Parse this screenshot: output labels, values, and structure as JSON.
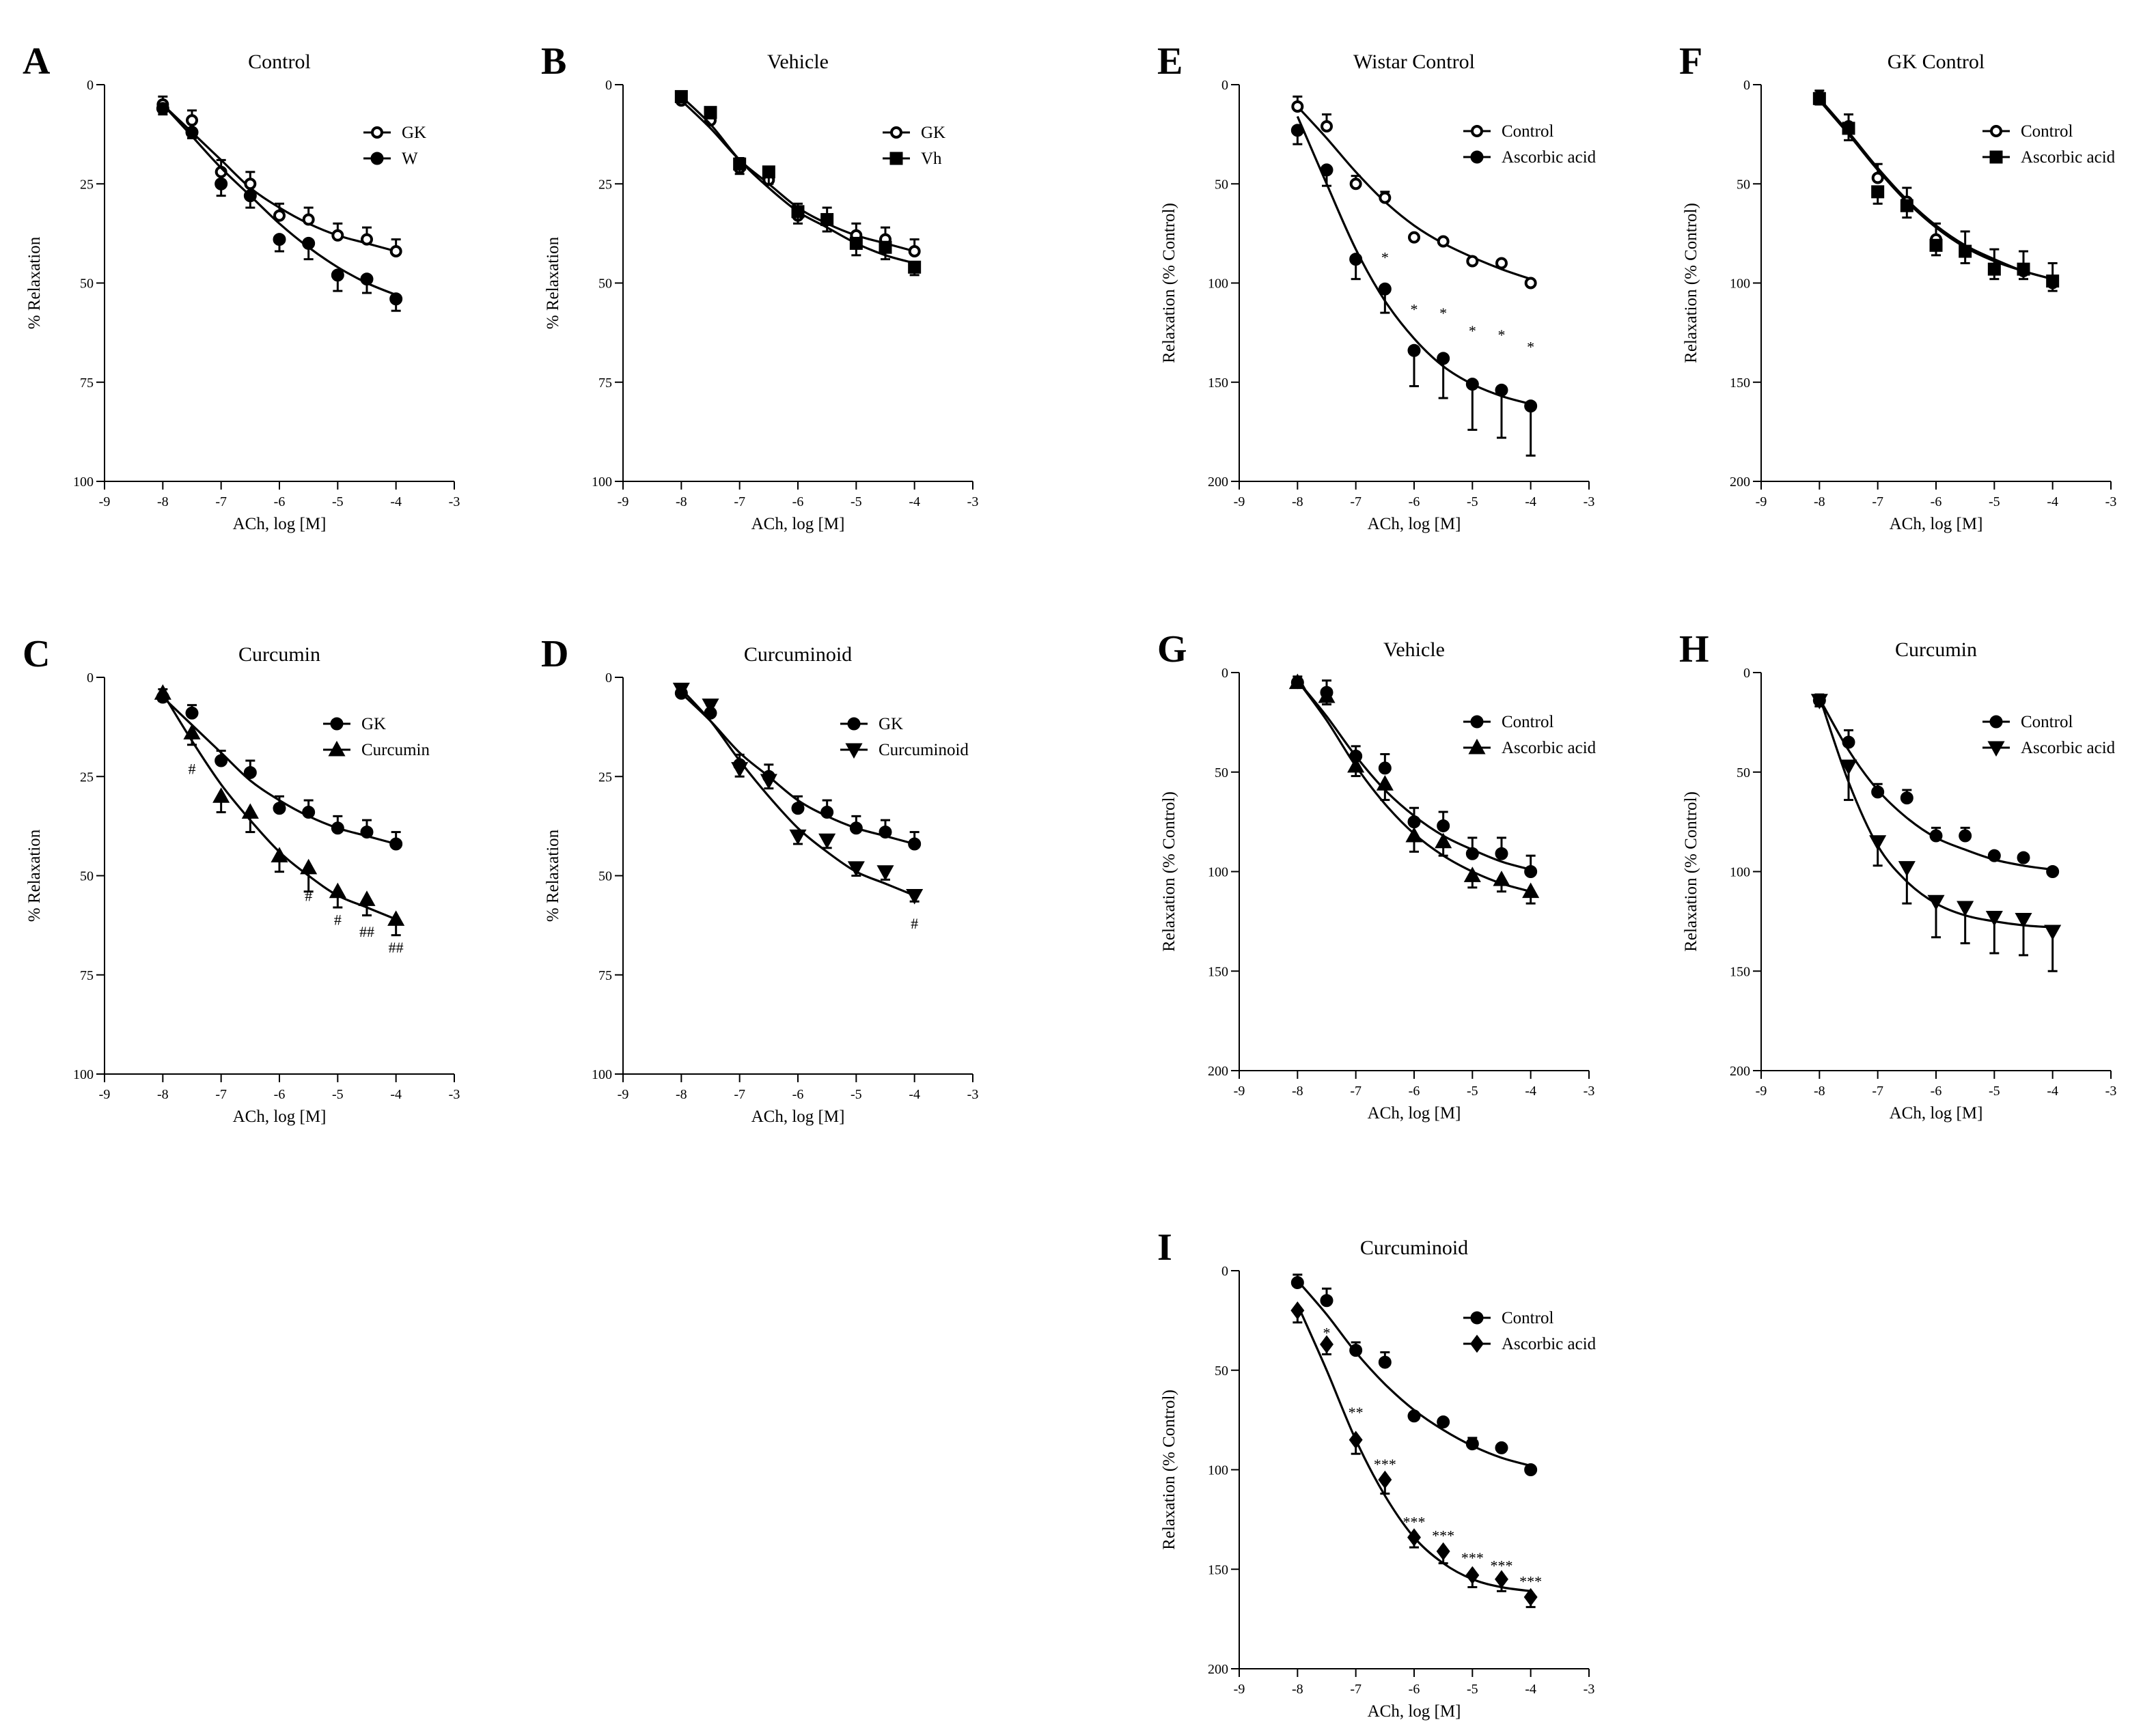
{
  "figure": {
    "background": "#ffffff",
    "ink": "#000000"
  },
  "chart_data": [
    {
      "id": "A",
      "letter": "A",
      "type": "line",
      "title": "Control",
      "xlabel": "ACh, log [M]",
      "ylabel": "% Relaxation",
      "xlim": [
        -9,
        -3
      ],
      "ylim": [
        0,
        100
      ],
      "y_inverted": true,
      "xticks": [
        -9,
        -8,
        -7,
        -6,
        -5,
        -4,
        -3
      ],
      "yticks": [
        0,
        25,
        50,
        75,
        100
      ],
      "x": [
        -8,
        -7.5,
        -7,
        -6.5,
        -6,
        -5.5,
        -5,
        -4.5,
        -4
      ],
      "series": [
        {
          "name": "GK",
          "marker": "circle-open",
          "values": [
            5,
            9,
            22,
            25,
            33,
            34,
            38,
            39,
            42
          ],
          "errors": [
            2,
            2.5,
            3,
            3,
            3,
            3,
            3,
            3,
            3
          ],
          "fit": [
            5,
            12,
            19,
            26,
            31,
            35,
            38,
            40,
            42
          ]
        },
        {
          "name": "W",
          "marker": "circle-filled",
          "values": [
            6,
            12,
            25,
            28,
            39,
            40,
            48,
            49,
            54
          ],
          "errors": [
            1.5,
            1.5,
            3,
            3,
            3,
            4,
            4,
            3.5,
            3
          ],
          "fit": [
            5,
            13,
            21,
            28,
            35,
            41,
            46,
            50,
            53
          ]
        }
      ],
      "annotations": [],
      "legend_position": "top-right"
    },
    {
      "id": "B",
      "letter": "B",
      "type": "line",
      "title": "Vehicle",
      "xlabel": "ACh, log [M]",
      "ylabel": "% Relaxation",
      "xlim": [
        -9,
        -3
      ],
      "ylim": [
        0,
        100
      ],
      "y_inverted": true,
      "xticks": [
        -9,
        -8,
        -7,
        -6,
        -5,
        -4,
        -3
      ],
      "yticks": [
        0,
        25,
        50,
        75,
        100
      ],
      "x": [
        -8,
        -7.5,
        -7,
        -6.5,
        -6,
        -5.5,
        -5,
        -4.5,
        -4
      ],
      "series": [
        {
          "name": "GK",
          "marker": "circle-open",
          "values": [
            4,
            9,
            21,
            24,
            33,
            34,
            38,
            39,
            42
          ],
          "errors": [
            2,
            2,
            2.5,
            3,
            3,
            3,
            3,
            3,
            3
          ],
          "fit": [
            4,
            11,
            19,
            25,
            31,
            35,
            38,
            40,
            42
          ]
        },
        {
          "name": "Vh",
          "marker": "square-filled",
          "values": [
            3,
            7,
            20,
            22,
            32,
            34,
            40,
            41,
            46
          ],
          "errors": [
            1.5,
            1.5,
            2.5,
            3,
            3,
            3,
            3,
            3,
            2
          ],
          "fit": [
            3,
            10,
            19,
            26,
            32,
            36,
            40,
            43,
            45
          ]
        }
      ],
      "annotations": [],
      "legend_position": "top-right"
    },
    {
      "id": "C",
      "letter": "C",
      "type": "line",
      "title": "Curcumin",
      "xlabel": "ACh, log [M]",
      "ylabel": "% Relaxation",
      "xlim": [
        -9,
        -3
      ],
      "ylim": [
        0,
        100
      ],
      "y_inverted": true,
      "xticks": [
        -9,
        -8,
        -7,
        -6,
        -5,
        -4,
        -3
      ],
      "yticks": [
        0,
        25,
        50,
        75,
        100
      ],
      "x": [
        -8,
        -7.5,
        -7,
        -6.5,
        -6,
        -5.5,
        -5,
        -4.5,
        -4
      ],
      "series": [
        {
          "name": "GK",
          "marker": "circle-filled",
          "values": [
            5,
            9,
            21,
            24,
            33,
            34,
            38,
            39,
            42
          ],
          "errors": [
            2,
            2,
            2.5,
            3,
            3,
            3,
            3,
            3,
            3
          ],
          "fit": [
            5,
            12,
            19,
            26,
            31,
            35,
            38,
            40,
            42
          ]
        },
        {
          "name": "Curcumin",
          "marker": "triangle-up",
          "values": [
            4,
            14,
            30,
            34,
            45,
            48,
            54,
            56,
            61
          ],
          "errors": [
            2,
            3,
            4,
            5,
            4,
            6,
            4,
            4,
            4
          ],
          "fit": [
            4,
            16,
            27,
            36,
            44,
            50,
            55,
            58,
            61
          ]
        }
      ],
      "annotations": [
        {
          "text": "#",
          "x": -7.5,
          "y": 23
        },
        {
          "text": "#",
          "x": -5.5,
          "y": 55
        },
        {
          "text": "#",
          "x": -5,
          "y": 61
        },
        {
          "text": "##",
          "x": -4.5,
          "y": 64
        },
        {
          "text": "##",
          "x": -4,
          "y": 68
        }
      ],
      "legend_position": "top-right"
    },
    {
      "id": "D",
      "letter": "D",
      "type": "line",
      "title": "Curcuminoid",
      "xlabel": "ACh, log [M]",
      "ylabel": "% Relaxation",
      "xlim": [
        -9,
        -3
      ],
      "ylim": [
        0,
        100
      ],
      "y_inverted": true,
      "xticks": [
        -9,
        -8,
        -7,
        -6,
        -5,
        -4,
        -3
      ],
      "yticks": [
        0,
        25,
        50,
        75,
        100
      ],
      "x": [
        -8,
        -7.5,
        -7,
        -6.5,
        -6,
        -5.5,
        -5,
        -4.5,
        -4
      ],
      "series": [
        {
          "name": "GK",
          "marker": "circle-filled",
          "values": [
            4,
            9,
            22,
            25,
            33,
            34,
            38,
            39,
            42
          ],
          "errors": [
            2,
            2,
            2.5,
            3,
            3,
            3,
            3,
            3,
            3
          ],
          "fit": [
            4,
            11,
            19,
            25,
            31,
            35,
            38,
            40,
            42
          ]
        },
        {
          "name": "Curcuminoid",
          "marker": "triangle-down",
          "values": [
            3,
            7,
            23,
            26,
            40,
            41,
            48,
            49,
            55
          ],
          "errors": [
            1.5,
            1.5,
            2,
            2,
            2,
            2,
            2,
            2,
            1.5
          ],
          "fit": [
            3,
            11,
            21,
            30,
            38,
            44,
            49,
            52,
            55
          ]
        }
      ],
      "annotations": [
        {
          "text": "#",
          "x": -4,
          "y": 62
        }
      ],
      "legend_position": "top-right"
    },
    {
      "id": "E",
      "letter": "E",
      "type": "line",
      "title": "Wistar Control",
      "xlabel": "ACh, log [M]",
      "ylabel": "Relaxation (% Control)",
      "xlim": [
        -9,
        -3
      ],
      "ylim": [
        0,
        200
      ],
      "y_inverted": true,
      "xticks": [
        -9,
        -8,
        -7,
        -6,
        -5,
        -4,
        -3
      ],
      "yticks": [
        0,
        50,
        100,
        150,
        200
      ],
      "x": [
        -8,
        -7.5,
        -7,
        -6.5,
        -6,
        -5.5,
        -5,
        -4.5,
        -4
      ],
      "series": [
        {
          "name": "Control",
          "marker": "circle-open",
          "values": [
            11,
            21,
            50,
            57,
            77,
            79,
            89,
            90,
            100
          ],
          "errors": [
            5,
            6,
            4,
            3,
            0,
            0,
            0,
            0,
            0
          ],
          "fit": [
            11,
            27,
            44,
            59,
            71,
            80,
            87,
            93,
            98
          ]
        },
        {
          "name": "Ascorbic acid",
          "marker": "circle-filled",
          "values": [
            23,
            43,
            88,
            103,
            134,
            138,
            151,
            154,
            162
          ],
          "errors": [
            7,
            8,
            10,
            12,
            18,
            20,
            23,
            24,
            25
          ],
          "fit": [
            16,
            50,
            83,
            109,
            128,
            142,
            151,
            157,
            161
          ]
        }
      ],
      "annotations": [
        {
          "text": "*",
          "x": -6.5,
          "y": 87
        },
        {
          "text": "*",
          "x": -6,
          "y": 113
        },
        {
          "text": "*",
          "x": -5.5,
          "y": 115
        },
        {
          "text": "*",
          "x": -5,
          "y": 124
        },
        {
          "text": "*",
          "x": -4.5,
          "y": 126
        },
        {
          "text": "*",
          "x": -4,
          "y": 132
        }
      ],
      "legend_position": "top-right"
    },
    {
      "id": "F",
      "letter": "F",
      "type": "line",
      "title": "GK Control",
      "xlabel": "ACh, log [M]",
      "ylabel": "Relaxation (% Control)",
      "xlim": [
        -9,
        -3
      ],
      "ylim": [
        0,
        200
      ],
      "y_inverted": true,
      "xticks": [
        -9,
        -8,
        -7,
        -6,
        -5,
        -4,
        -3
      ],
      "yticks": [
        0,
        50,
        100,
        150,
        200
      ],
      "x": [
        -8,
        -7.5,
        -7,
        -6.5,
        -6,
        -5.5,
        -5,
        -4.5,
        -4
      ],
      "series": [
        {
          "name": "Control",
          "marker": "circle-open",
          "values": [
            6,
            21,
            47,
            59,
            78,
            84,
            93,
            94,
            100
          ],
          "errors": [
            3,
            6,
            7,
            7,
            8,
            10,
            10,
            10,
            10
          ],
          "fit": [
            7,
            24,
            42,
            58,
            71,
            81,
            88,
            94,
            98
          ]
        },
        {
          "name": "Ascorbic acid",
          "marker": "square-filled",
          "values": [
            7,
            22,
            54,
            61,
            81,
            84,
            93,
            93,
            99
          ],
          "errors": [
            3,
            6,
            6,
            6,
            5,
            6,
            5,
            5,
            5
          ],
          "fit": [
            8,
            25,
            43,
            59,
            72,
            82,
            89,
            94,
            98
          ]
        }
      ],
      "annotations": [],
      "legend_position": "top-right"
    },
    {
      "id": "G",
      "letter": "G",
      "type": "line",
      "title": "Vehicle",
      "xlabel": "ACh, log [M]",
      "ylabel": "Relaxation (% Control)",
      "xlim": [
        -9,
        -3
      ],
      "ylim": [
        0,
        200
      ],
      "y_inverted": true,
      "xticks": [
        -9,
        -8,
        -7,
        -6,
        -5,
        -4,
        -3
      ],
      "yticks": [
        0,
        50,
        100,
        150,
        200
      ],
      "x": [
        -8,
        -7.5,
        -7,
        -6.5,
        -6,
        -5.5,
        -5,
        -4.5,
        -4
      ],
      "series": [
        {
          "name": "Control",
          "marker": "circle-filled",
          "values": [
            5,
            10,
            42,
            48,
            75,
            77,
            91,
            91,
            100
          ],
          "errors": [
            3,
            6,
            5,
            7,
            7,
            7,
            8,
            8,
            8
          ],
          "fit": [
            4,
            22,
            42,
            59,
            72,
            82,
            89,
            95,
            99
          ]
        },
        {
          "name": "Ascorbic acid",
          "marker": "triangle-up",
          "values": [
            5,
            12,
            47,
            56,
            82,
            85,
            102,
            104,
            110
          ],
          "errors": [
            2,
            4,
            5,
            8,
            8,
            7,
            6,
            6,
            6
          ],
          "fit": [
            4,
            24,
            47,
            66,
            81,
            92,
            100,
            106,
            110
          ]
        }
      ],
      "annotations": [],
      "legend_position": "top-right"
    },
    {
      "id": "H",
      "letter": "H",
      "type": "line",
      "title": "Curcumin",
      "xlabel": "ACh, log [M]",
      "ylabel": "Relaxation (% Control)",
      "xlim": [
        -9,
        -3
      ],
      "ylim": [
        0,
        200
      ],
      "y_inverted": true,
      "xticks": [
        -9,
        -8,
        -7,
        -6,
        -5,
        -4,
        -3
      ],
      "yticks": [
        0,
        50,
        100,
        150,
        200
      ],
      "x": [
        -8,
        -7.5,
        -7,
        -6.5,
        -6,
        -5.5,
        -5,
        -4.5,
        -4
      ],
      "series": [
        {
          "name": "Control",
          "marker": "circle-filled",
          "values": [
            14,
            35,
            60,
            63,
            82,
            82,
            92,
            93,
            100
          ],
          "errors": [
            3,
            6,
            4,
            4,
            4,
            4,
            0,
            0,
            0
          ],
          "fit": [
            13,
            39,
            59,
            73,
            83,
            89,
            94,
            97,
            99
          ]
        },
        {
          "name": "Ascorbic acid",
          "marker": "triangle-down",
          "values": [
            14,
            47,
            85,
            98,
            115,
            118,
            123,
            124,
            130
          ],
          "errors": [
            3,
            17,
            12,
            18,
            18,
            18,
            18,
            18,
            20
          ],
          "fit": [
            12,
            55,
            87,
            105,
            116,
            122,
            125,
            127,
            128
          ]
        }
      ],
      "annotations": [],
      "legend_position": "top-right"
    },
    {
      "id": "I",
      "letter": "I",
      "type": "line",
      "title": "Curcuminoid",
      "xlabel": "ACh, log [M]",
      "ylabel": "Relaxation (% Control)",
      "xlim": [
        -9,
        -3
      ],
      "ylim": [
        0,
        200
      ],
      "y_inverted": true,
      "xticks": [
        -9,
        -8,
        -7,
        -6,
        -5,
        -4,
        -3
      ],
      "yticks": [
        0,
        50,
        100,
        150,
        200
      ],
      "x": [
        -8,
        -7.5,
        -7,
        -6.5,
        -6,
        -5.5,
        -5,
        -4.5,
        -4
      ],
      "series": [
        {
          "name": "Control",
          "marker": "circle-filled",
          "values": [
            6,
            15,
            40,
            46,
            73,
            76,
            87,
            89,
            100
          ],
          "errors": [
            4,
            6,
            4,
            5,
            0,
            0,
            3,
            0,
            0
          ],
          "fit": [
            5,
            22,
            41,
            57,
            70,
            80,
            88,
            94,
            98
          ]
        },
        {
          "name": "Ascorbic acid",
          "marker": "diamond",
          "values": [
            20,
            37,
            85,
            105,
            134,
            141,
            153,
            155,
            164
          ],
          "errors": [
            6,
            5,
            7,
            7,
            5,
            6,
            6,
            6,
            5
          ],
          "fit": [
            17,
            50,
            85,
            113,
            134,
            147,
            155,
            159,
            161
          ]
        }
      ],
      "annotations": [
        {
          "text": "*",
          "x": -7.5,
          "y": 31
        },
        {
          "text": "**",
          "x": -7,
          "y": 71
        },
        {
          "text": "***",
          "x": -6.5,
          "y": 97
        },
        {
          "text": "***",
          "x": -6,
          "y": 126
        },
        {
          "text": "***",
          "x": -5.5,
          "y": 133
        },
        {
          "text": "***",
          "x": -5,
          "y": 144
        },
        {
          "text": "***",
          "x": -4.5,
          "y": 148
        },
        {
          "text": "***",
          "x": -4,
          "y": 156
        }
      ],
      "legend_position": "top-right"
    }
  ]
}
